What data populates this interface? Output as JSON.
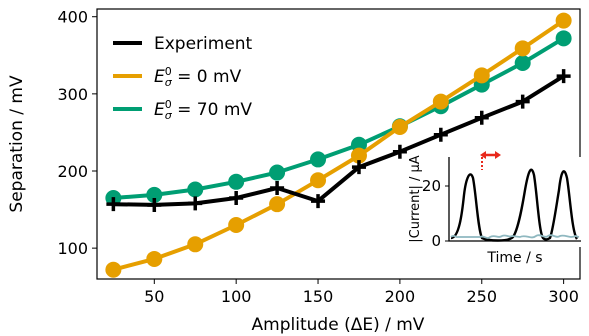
{
  "chart_data": [
    {
      "type": "line",
      "xlabel": "Amplitude (ΔE) / mV",
      "ylabel": "Separation / mV",
      "xlim": [
        15,
        310
      ],
      "ylim": [
        60,
        410
      ],
      "xticks": [
        50,
        100,
        150,
        200,
        250,
        300
      ],
      "yticks": [
        100,
        200,
        300,
        400
      ],
      "grid": false,
      "legend": "upper-left",
      "x": [
        25,
        50,
        75,
        100,
        125,
        150,
        175,
        200,
        225,
        250,
        275,
        300
      ],
      "series": [
        {
          "name": "Experiment",
          "color": "#000000",
          "marker": "plus",
          "values": [
            157,
            156,
            158,
            165,
            178,
            161,
            205,
            225,
            247,
            269,
            290,
            323
          ]
        },
        {
          "name": "E_σ^0 = 0 mV",
          "color": "#E69F00",
          "marker": "circle",
          "values": [
            72,
            86,
            105,
            130,
            157,
            188,
            220,
            257,
            290,
            324,
            359,
            395
          ]
        },
        {
          "name": "E_σ^0 = 70 mV",
          "color": "#009E73",
          "marker": "circle",
          "values": [
            165,
            169,
            176,
            186,
            198,
            215,
            234,
            258,
            284,
            312,
            340,
            372
          ]
        }
      ]
    },
    {
      "type": "line",
      "inset": true,
      "xlabel": "Time / s",
      "ylabel": "|Current| / µA",
      "yticks": [
        0,
        20
      ],
      "annotation": "double-headed red arrow marking peak separation",
      "colors": {
        "signal": "#000000",
        "baseline": "#8fb8c0",
        "arrow": "#e8291c"
      }
    }
  ],
  "legend": {
    "entries": [
      {
        "label": "Experiment"
      },
      {
        "label_prefix": "E",
        "sup": "0",
        "sub": "σ",
        "label_suffix": " = 0 mV"
      },
      {
        "label_prefix": "E",
        "sup": "0",
        "sub": "σ",
        "label_suffix": " = 70 mV"
      }
    ]
  }
}
